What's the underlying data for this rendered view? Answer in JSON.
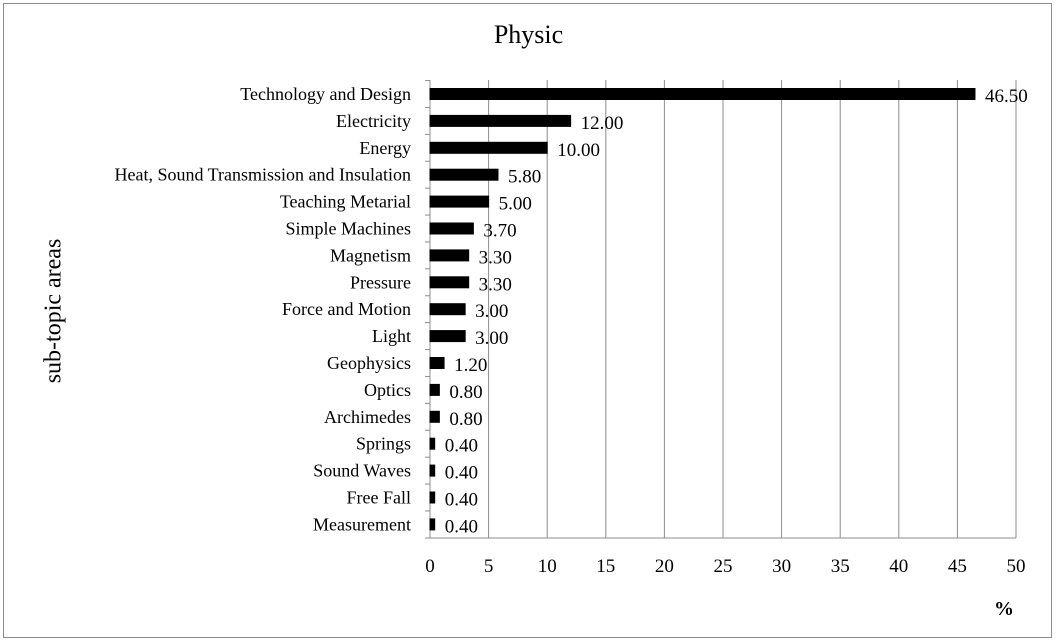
{
  "chart_data": {
    "type": "bar",
    "orientation": "horizontal",
    "title": "Physic",
    "ylabel": "sub-topic areas",
    "xlabel": "%",
    "xlim": [
      0,
      50
    ],
    "xticks": [
      "0",
      "5",
      "10",
      "15",
      "20",
      "25",
      "30",
      "35",
      "40",
      "45",
      "50"
    ],
    "grid": "vertical",
    "bar_color": "#000000",
    "categories": [
      "Technology and Design",
      "Electricity",
      "Energy",
      "Heat, Sound Transmission and Insulation",
      "Teaching Metarial",
      "Simple Machines",
      "Magnetism",
      "Pressure",
      "Force and Motion",
      "Light",
      "Geophysics",
      "Optics",
      "Archimedes",
      "Springs",
      "Sound Waves",
      "Free Fall",
      "Measurement"
    ],
    "values": [
      46.5,
      12.0,
      10.0,
      5.8,
      5.0,
      3.7,
      3.3,
      3.3,
      3.0,
      3.0,
      1.2,
      0.8,
      0.8,
      0.4,
      0.4,
      0.4,
      0.4
    ],
    "value_labels": [
      "46.50",
      "12.00",
      "10.00",
      "5.80",
      "5.00",
      "3.70",
      "3.30",
      "3.30",
      "3.00",
      "3.00",
      "1.20",
      "0.80",
      "0.80",
      "0.40",
      "0.40",
      "0.40",
      "0.40"
    ]
  }
}
